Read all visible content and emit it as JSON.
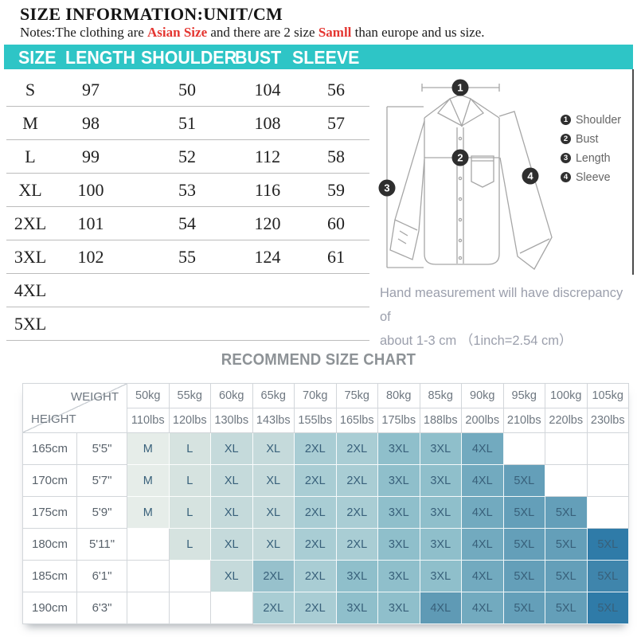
{
  "title": "SIZE INFORMATION:UNIT/CM",
  "notes": {
    "prefix": "Notes:The clothing are ",
    "highlight1": "Asian Size",
    "middle": " and there are 2 size ",
    "highlight2": "Samll",
    "suffix": " than europe and us size."
  },
  "colors": {
    "bar": "#2ec5c6",
    "red": "#e43530",
    "cell_text": "#38607a",
    "palette": {
      "M": "#e6ede9",
      "L": "#d6e3e0",
      "XL": "#c5dadb",
      "2XL": "#a9cdd4",
      "3XL": "#8fbfcb",
      "4XL": "#72aabf",
      "5XL": "#649fb9"
    },
    "overrides": [
      {
        "row": 3,
        "col": 11,
        "color": "#2f7ba8"
      },
      {
        "row": 4,
        "col": 11,
        "color": "#3f85ac"
      },
      {
        "row": 5,
        "col": 11,
        "color": "#2f7ba8"
      },
      {
        "row": 5,
        "col": 7,
        "color": "#5f9ab5"
      },
      {
        "row": 4,
        "col": 3,
        "color": "#97c1cc"
      }
    ]
  },
  "size_table": {
    "headers": [
      "SIZE",
      "LENGTH",
      "SHOULDER",
      "BUST",
      "SLEEVE"
    ],
    "rows": [
      [
        "S",
        "97",
        "50",
        "104",
        "56"
      ],
      [
        "M",
        "98",
        "51",
        "108",
        "57"
      ],
      [
        "L",
        "99",
        "52",
        "112",
        "58"
      ],
      [
        "XL",
        "100",
        "53",
        "116",
        "59"
      ],
      [
        "2XL",
        "101",
        "54",
        "120",
        "60"
      ],
      [
        "3XL",
        "102",
        "55",
        "124",
        "61"
      ],
      [
        "4XL",
        "",
        "",
        "",
        ""
      ],
      [
        "5XL",
        "",
        "",
        "",
        ""
      ]
    ]
  },
  "diagram": {
    "markers": [
      "1",
      "2",
      "3",
      "4"
    ],
    "legend": [
      {
        "num": "1",
        "label": "Shoulder"
      },
      {
        "num": "2",
        "label": "Bust"
      },
      {
        "num": "3",
        "label": "Length"
      },
      {
        "num": "4",
        "label": "Sleeve"
      }
    ],
    "note_line1": "Hand measurement will have discrepancy of",
    "note_line2": "about 1-3 cm （1inch=2.54 cm）"
  },
  "recommend_chart": {
    "title": "RECOMMEND SIZE CHART",
    "corner_top": "WEIGHT",
    "corner_bottom": "HEIGHT",
    "weights_kg": [
      "50kg",
      "55kg",
      "60kg",
      "65kg",
      "70kg",
      "75kg",
      "80kg",
      "85kg",
      "90kg",
      "95kg",
      "100kg",
      "105kg"
    ],
    "weights_lbs": [
      "110lbs",
      "120lbs",
      "130lbs",
      "143lbs",
      "155lbs",
      "165lbs",
      "175lbs",
      "188lbs",
      "200lbs",
      "210lbs",
      "220lbs",
      "230lbs"
    ],
    "rows": [
      {
        "height_cm": "165cm",
        "height_ft": "5'5\"",
        "sizes": [
          "M",
          "L",
          "XL",
          "XL",
          "2XL",
          "2XL",
          "3XL",
          "3XL",
          "4XL",
          "",
          "",
          ""
        ]
      },
      {
        "height_cm": "170cm",
        "height_ft": "5'7\"",
        "sizes": [
          "M",
          "L",
          "XL",
          "XL",
          "2XL",
          "2XL",
          "3XL",
          "3XL",
          "4XL",
          "5XL",
          "",
          ""
        ]
      },
      {
        "height_cm": "175cm",
        "height_ft": "5'9\"",
        "sizes": [
          "M",
          "L",
          "XL",
          "XL",
          "2XL",
          "2XL",
          "3XL",
          "3XL",
          "4XL",
          "5XL",
          "5XL",
          ""
        ]
      },
      {
        "height_cm": "180cm",
        "height_ft": "5'11\"",
        "sizes": [
          "",
          "L",
          "XL",
          "XL",
          "2XL",
          "2XL",
          "3XL",
          "3XL",
          "4XL",
          "5XL",
          "5XL",
          "5XL"
        ]
      },
      {
        "height_cm": "185cm",
        "height_ft": "6'1\"",
        "sizes": [
          "",
          "",
          "XL",
          "2XL",
          "2XL",
          "3XL",
          "3XL",
          "3XL",
          "4XL",
          "5XL",
          "5XL",
          "5XL"
        ]
      },
      {
        "height_cm": "190cm",
        "height_ft": "6'3\"",
        "sizes": [
          "",
          "",
          "",
          "2XL",
          "2XL",
          "3XL",
          "3XL",
          "4XL",
          "4XL",
          "5XL",
          "5XL",
          "5XL"
        ]
      }
    ]
  }
}
